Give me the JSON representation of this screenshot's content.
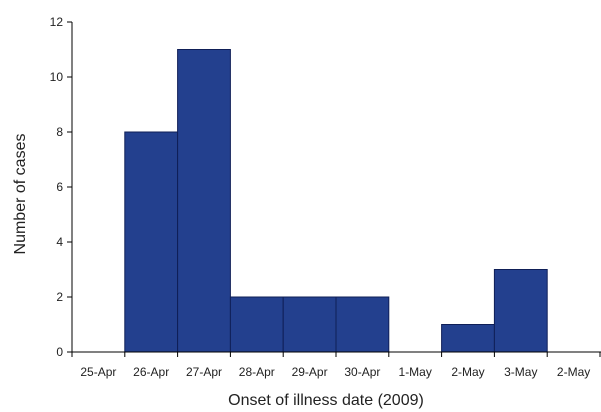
{
  "chart_data": {
    "type": "bar",
    "categories": [
      "25-Apr",
      "26-Apr",
      "27-Apr",
      "28-Apr",
      "29-Apr",
      "30-Apr",
      "1-May",
      "2-May",
      "3-May",
      "2-May"
    ],
    "values": [
      0,
      8,
      11,
      2,
      2,
      2,
      0,
      1,
      3,
      0
    ],
    "xlabel": "Onset of illness date (2009)",
    "ylabel": "Number of cases",
    "ylim": [
      0,
      12
    ],
    "yticks": [
      0,
      2,
      4,
      6,
      8,
      10,
      12
    ],
    "grid": false,
    "legend": "none",
    "bar_color": "#23408e"
  }
}
